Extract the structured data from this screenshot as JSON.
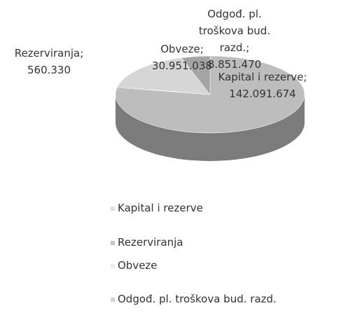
{
  "chart_data": {
    "type": "pie",
    "categories": [
      "Kapital i rezerve",
      "Rezerviranja",
      "Obveze",
      "Odgođ. pl. troškova bud. razd."
    ],
    "values": [
      142091674,
      560330,
      30951038,
      8851470
    ],
    "value_labels": [
      "142.091.674",
      "560.330",
      "30.951.038",
      "8.851.470"
    ],
    "label_separator": ";",
    "colors": [
      "#bdbdbd",
      "#8a8a8a",
      "#d6d6d6",
      "#a4a4a4"
    ],
    "legend": "bottom"
  }
}
